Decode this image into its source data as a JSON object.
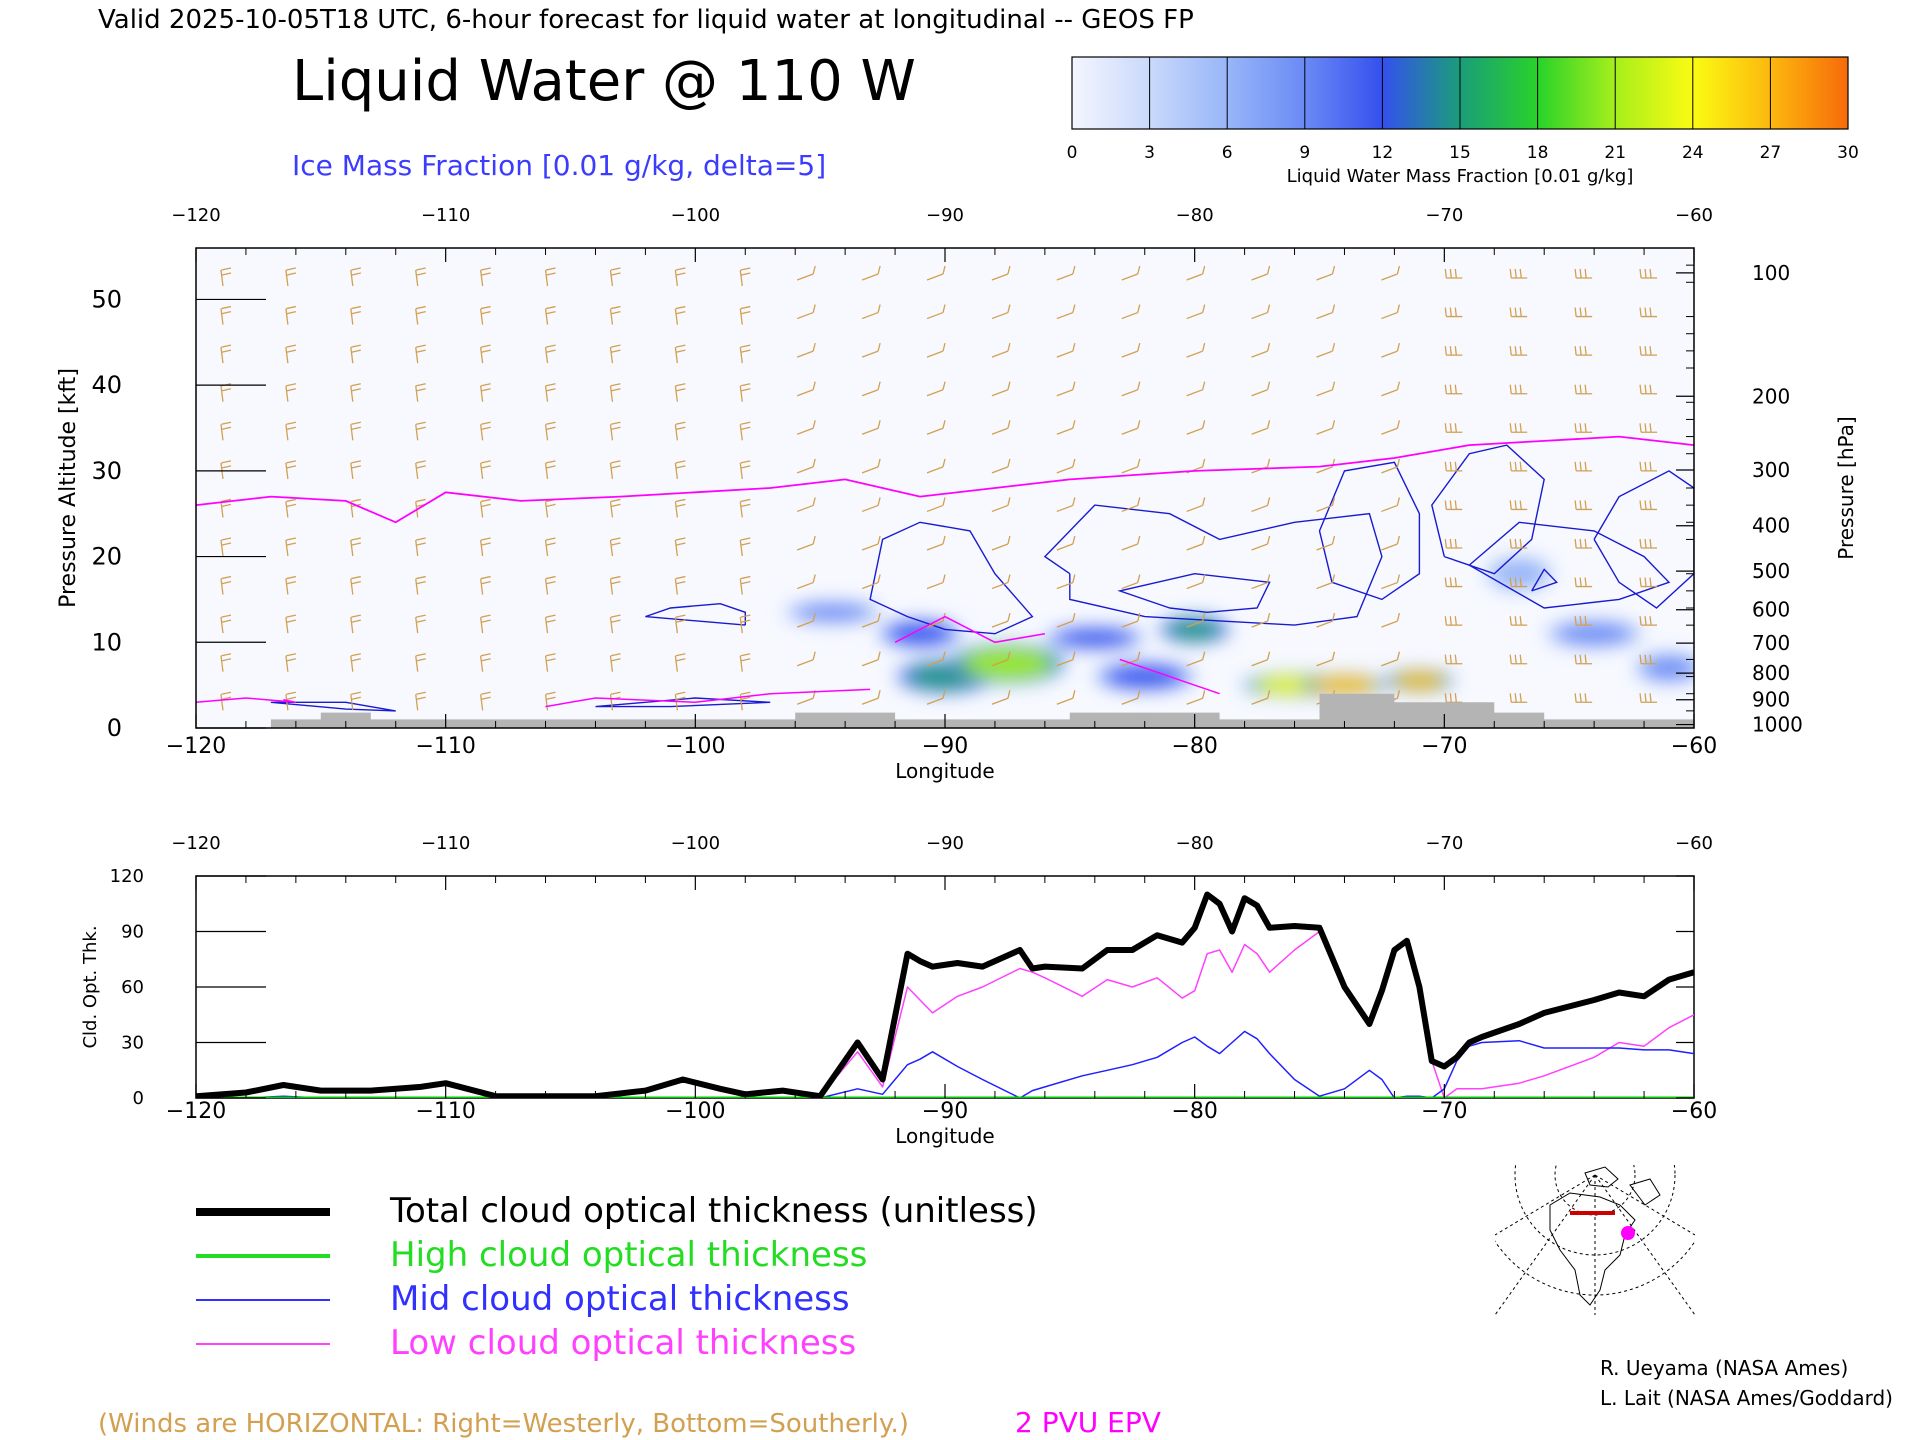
{
  "header": {
    "valid_line": "Valid 2025-10-05T18 UTC, 6-hour forecast for liquid water at longitudinal -- GEOS FP",
    "title": "Liquid Water @ 110 W",
    "subtitle": "Ice Mass Fraction [0.01 g/kg, delta=5]",
    "subtitle_color": "#3c3cff"
  },
  "colorbar": {
    "ticks": [
      "0",
      "3",
      "6",
      "9",
      "12",
      "15",
      "18",
      "21",
      "24",
      "27",
      "30"
    ],
    "colors": [
      "#f4f6ff",
      "#c9d9fb",
      "#98b6f8",
      "#6a8af5",
      "#3550ee",
      "#1a9d7a",
      "#28d22a",
      "#a6ef1c",
      "#fbfb12",
      "#fcb80e",
      "#f76a0a"
    ],
    "label": "Liquid Water Mass Fraction [0.01 g/kg]"
  },
  "chart_data": [
    {
      "type": "heatmap",
      "title": "Liquid Water @ 110 W",
      "xlabel": "Longitude",
      "ylabel": "Pressure Altitude [kft]",
      "y2label": "Pressure [hPa]",
      "xlim": [
        -120,
        -60
      ],
      "ylim": [
        0,
        56
      ],
      "x_ticks": [
        -120,
        -110,
        -100,
        -90,
        -80,
        -70,
        -60
      ],
      "y_ticks": [
        0,
        10,
        20,
        30,
        40,
        50
      ],
      "pressure_ticks": [
        {
          "hpa": "100",
          "kft": 53.1
        },
        {
          "hpa": "200",
          "kft": 38.7
        },
        {
          "hpa": "300",
          "kft": 30.1
        },
        {
          "hpa": "400",
          "kft": 23.6
        },
        {
          "hpa": "500",
          "kft": 18.3
        },
        {
          "hpa": "600",
          "kft": 13.8
        },
        {
          "hpa": "700",
          "kft": 9.9
        },
        {
          "hpa": "800",
          "kft": 6.4
        },
        {
          "hpa": "900",
          "kft": 3.3
        },
        {
          "hpa": "1000",
          "kft": 0.4
        }
      ],
      "liquid_water_blobs": [
        {
          "lon": -87.5,
          "kft": 7.5,
          "value": 22,
          "width_deg": 3.5,
          "height_kft": 3.5
        },
        {
          "lon": -90,
          "kft": 6,
          "value": 15,
          "width_deg": 3,
          "height_kft": 3
        },
        {
          "lon": -91,
          "kft": 11,
          "value": 11,
          "width_deg": 2.5,
          "height_kft": 2.5
        },
        {
          "lon": -84,
          "kft": 10.5,
          "value": 12,
          "width_deg": 3,
          "height_kft": 2
        },
        {
          "lon": -80,
          "kft": 11.5,
          "value": 15,
          "width_deg": 2.2,
          "height_kft": 2.5
        },
        {
          "lon": -82,
          "kft": 6,
          "value": 12,
          "width_deg": 3,
          "height_kft": 2.5
        },
        {
          "lon": -76,
          "kft": 5,
          "value": 24,
          "width_deg": 3,
          "height_kft": 2
        },
        {
          "lon": -74,
          "kft": 5,
          "value": 28,
          "width_deg": 2.5,
          "height_kft": 2
        },
        {
          "lon": -71,
          "kft": 5.5,
          "value": 26,
          "width_deg": 2,
          "height_kft": 2
        },
        {
          "lon": -94.5,
          "kft": 13.5,
          "value": 8,
          "width_deg": 3,
          "height_kft": 2
        },
        {
          "lon": -61,
          "kft": 7,
          "value": 10,
          "width_deg": 2,
          "height_kft": 2.5
        },
        {
          "lon": -64,
          "kft": 11,
          "value": 9,
          "width_deg": 3,
          "height_kft": 2.5
        },
        {
          "lon": -67,
          "kft": 18,
          "value": 7,
          "width_deg": 2,
          "height_kft": 3
        }
      ],
      "epv_2pvu_line": {
        "lon": [
          -120,
          -117,
          -114,
          -112,
          -110,
          -107,
          -103,
          -100,
          -97,
          -94,
          -91,
          -88,
          -85,
          -80,
          -75,
          -72,
          -69,
          -66,
          -63,
          -60
        ],
        "kft": [
          26,
          27,
          26.5,
          24,
          27.5,
          26.5,
          27,
          27.5,
          28,
          29,
          27,
          28,
          29,
          30,
          30.5,
          31.5,
          33,
          33.5,
          34,
          33
        ]
      },
      "winds_note": "(Winds are HORIZONTAL: Right=Westerly, Bottom=Southerly.)",
      "epv_label": "2 PVU EPV",
      "epv_color": "#ff00ff",
      "winds_color": "#d2a050"
    },
    {
      "type": "line",
      "xlabel": "Longitude",
      "ylabel": "Cld. Opt. Thk.",
      "xlim": [
        -120,
        -60
      ],
      "ylim": [
        0,
        120
      ],
      "x_ticks": [
        -120,
        -110,
        -100,
        -90,
        -80,
        -70,
        -60
      ],
      "y_ticks": [
        0,
        30,
        60,
        90,
        120
      ],
      "x": [
        -120,
        -118,
        -116.5,
        -115,
        -113,
        -111,
        -110,
        -108,
        -106,
        -104,
        -102,
        -100.5,
        -99,
        -98,
        -96.5,
        -95,
        -93.5,
        -92.5,
        -91.5,
        -91,
        -90.5,
        -89.5,
        -88.5,
        -87,
        -86.5,
        -86,
        -84.5,
        -83.5,
        -82.5,
        -81.5,
        -80.5,
        -80,
        -79.5,
        -79,
        -78.5,
        -78,
        -77.5,
        -77,
        -76,
        -75,
        -74,
        -73,
        -72.5,
        -72,
        -71.5,
        -71,
        -70.5,
        -70,
        -69.5,
        -69,
        -68.5,
        -67,
        -66,
        -64,
        -63,
        -62,
        -61,
        -60
      ],
      "series": [
        {
          "name": "Total cloud optical thickness (unitless)",
          "color": "#000000",
          "width": 6,
          "values": [
            1,
            3,
            7,
            4,
            4,
            6,
            8,
            1,
            1,
            1,
            4,
            10,
            5,
            2,
            4,
            1,
            30,
            10,
            78,
            74,
            71,
            73,
            71,
            80,
            70,
            71,
            70,
            80,
            80,
            88,
            84,
            92,
            110,
            105,
            90,
            108,
            104,
            92,
            93,
            92,
            60,
            40,
            58,
            80,
            85,
            60,
            20,
            17,
            22,
            30,
            33,
            40,
            46,
            53,
            57,
            55,
            64,
            68
          ]
        },
        {
          "name": "High cloud optical thickness",
          "color": "#00cc00",
          "width": 3,
          "values": [
            0,
            0,
            0,
            0,
            0,
            0,
            0,
            0,
            0,
            0,
            0,
            0,
            0,
            0,
            0,
            0,
            0,
            0,
            0,
            0,
            0,
            0,
            0,
            0,
            0,
            0,
            0,
            0,
            0,
            0,
            0,
            0,
            0,
            0,
            0,
            0,
            0,
            0,
            0,
            0,
            0,
            0,
            0,
            0,
            0,
            0,
            0,
            0,
            0,
            0,
            0,
            0,
            0,
            0,
            0,
            0,
            0,
            0
          ]
        },
        {
          "name": "Mid cloud optical thickness",
          "color": "#2020ff",
          "width": 1.5,
          "values": [
            0,
            0,
            1,
            0,
            0,
            0,
            0,
            0,
            0,
            0,
            0,
            0,
            0,
            0,
            0,
            0,
            5,
            2,
            18,
            21,
            25,
            17,
            10,
            0,
            4,
            6,
            12,
            15,
            18,
            22,
            30,
            33,
            28,
            24,
            30,
            36,
            32,
            24,
            10,
            1,
            5,
            15,
            10,
            0,
            1,
            1,
            0,
            5,
            20,
            28,
            30,
            31,
            27,
            27,
            27,
            26,
            26,
            24
          ]
        },
        {
          "name": "Low cloud optical thickness",
          "color": "#ff40ff",
          "width": 1.5,
          "values": [
            1,
            3,
            7,
            4,
            4,
            6,
            8,
            1,
            1,
            1,
            4,
            10,
            5,
            2,
            4,
            1,
            25,
            6,
            60,
            53,
            46,
            55,
            60,
            70,
            68,
            65,
            55,
            64,
            60,
            65,
            54,
            58,
            78,
            80,
            68,
            83,
            78,
            68,
            80,
            90,
            58,
            40,
            58,
            78,
            85,
            60,
            20,
            0,
            5,
            5,
            5,
            8,
            12,
            22,
            30,
            28,
            38,
            45
          ]
        }
      ]
    }
  ],
  "legend": {
    "items": [
      {
        "label": "Total cloud optical thickness (unitless)",
        "color": "#000000"
      },
      {
        "label": "High cloud optical thickness",
        "color": "#22dd22"
      },
      {
        "label": "Mid cloud optical thickness",
        "color": "#3030ff"
      },
      {
        "label": "Low cloud optical thickness",
        "color": "#ff40ff"
      }
    ]
  },
  "credits": {
    "line1": "R. Ueyama (NASA Ames)",
    "line2": "L. Lait (NASA Ames/Goddard)"
  }
}
